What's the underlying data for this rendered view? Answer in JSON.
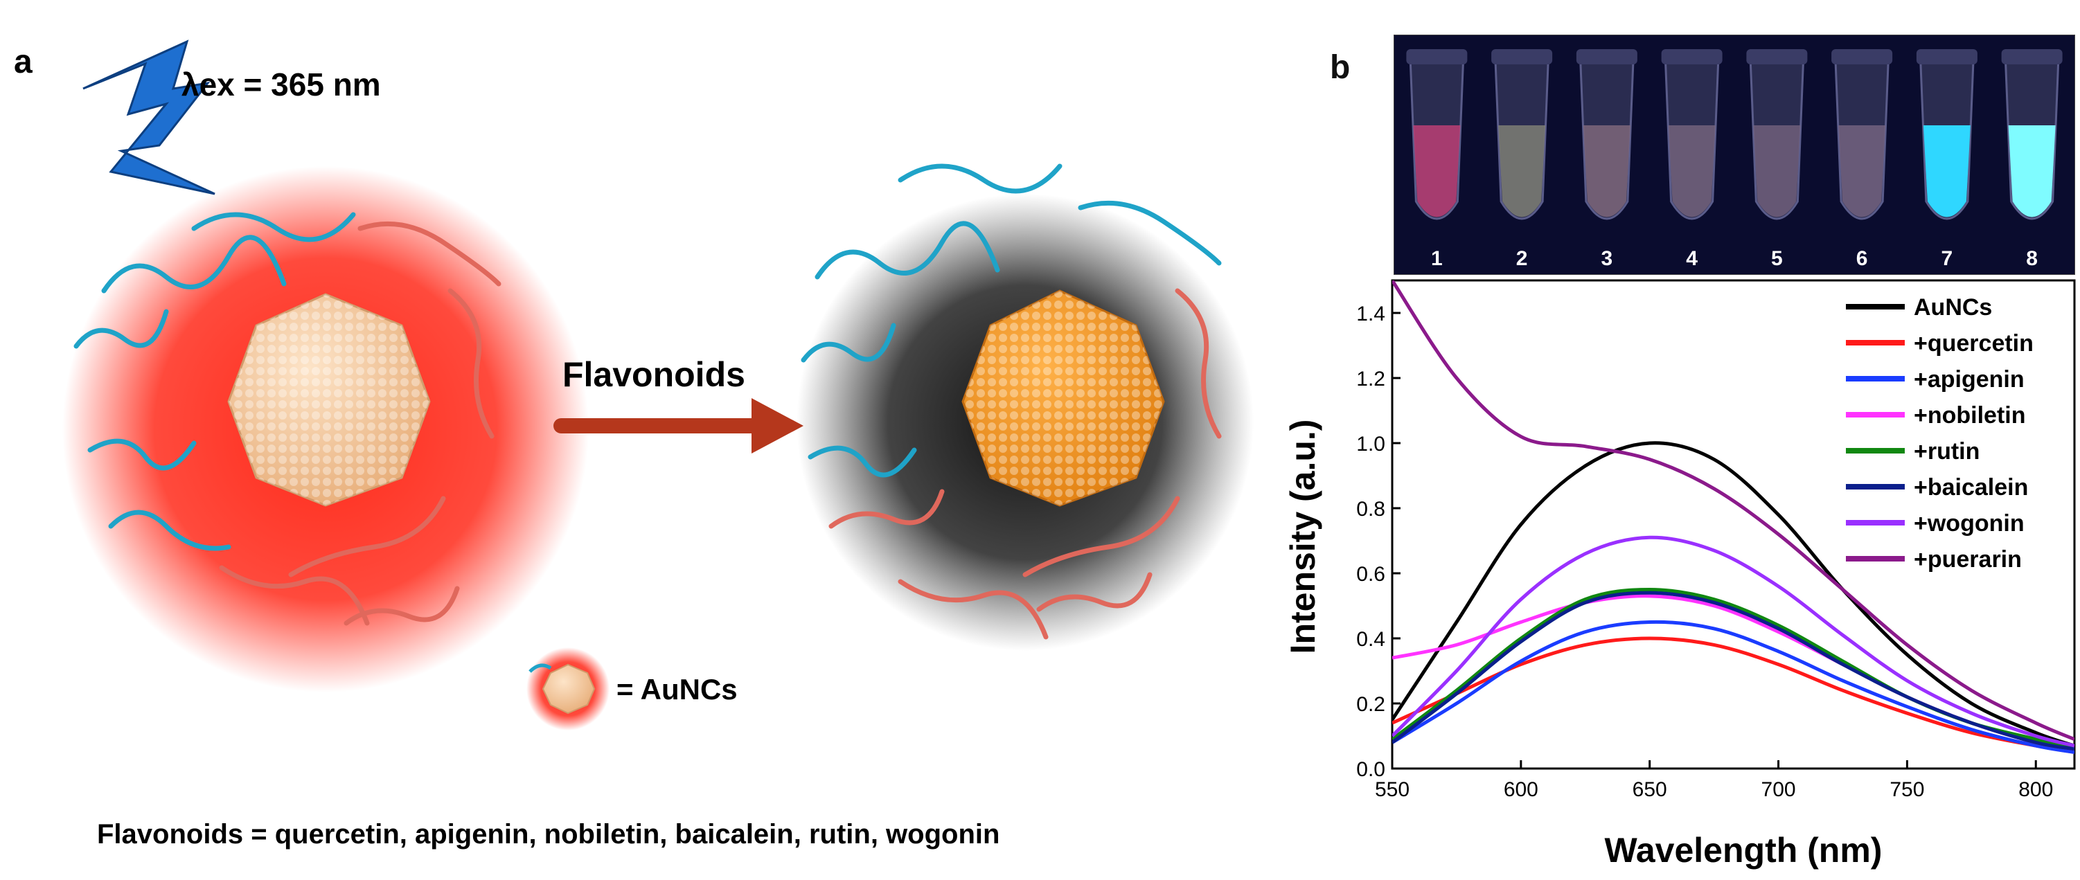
{
  "panel_a": {
    "label": "a",
    "excitation": "λex = 365 nm",
    "arrow_label": "Flavonoids",
    "legend_eq": "= AuNCs",
    "caption": "Flavonoids = quercetin, apigenin, nobiletin, baicalein, rutin, wogonin",
    "colors": {
      "glow": "#ff2a1a",
      "dark_glow": "#1a1a1a",
      "cluster": "#f2c49a",
      "arrow": "#b5371c",
      "protein_blue": "#1fa3c8",
      "protein_red": "#e0685c",
      "bolt": "#1e6fd0"
    }
  },
  "panel_b": {
    "label": "b",
    "tubes": [
      "1",
      "2",
      "3",
      "4",
      "5",
      "6",
      "7",
      "8"
    ],
    "tube_colors": [
      "#d0427a",
      "#8a8a7a",
      "#8a6f80",
      "#7d6a82",
      "#7a6680",
      "#7d6a86",
      "#2fd7ff",
      "#7ffcff"
    ]
  },
  "chart_data": {
    "type": "line",
    "xlabel": "Wavelength (nm)",
    "ylabel": "Intensity (a.u.)",
    "xlim": [
      550,
      815
    ],
    "ylim": [
      0,
      1.5
    ],
    "xticks": [
      550,
      600,
      650,
      700,
      750,
      800
    ],
    "yticks": [
      0.0,
      0.2,
      0.4,
      0.6,
      0.8,
      1.0,
      1.2,
      1.4
    ],
    "tick_labels_x": [
      "550",
      "600",
      "650",
      "700",
      "750",
      "800"
    ],
    "tick_labels_y": [
      "0.0",
      "0.2",
      "0.4",
      "0.6",
      "0.8",
      "1.0",
      "1.2",
      "1.4"
    ],
    "legend_position": "top-right",
    "x": [
      550,
      575,
      600,
      625,
      650,
      675,
      700,
      725,
      750,
      775,
      800,
      815
    ],
    "series": [
      {
        "name": "AuNCs",
        "color": "#000000",
        "values": [
          0.15,
          0.45,
          0.75,
          0.93,
          1.0,
          0.95,
          0.78,
          0.55,
          0.35,
          0.2,
          0.11,
          0.07
        ]
      },
      {
        "name": "+quercetin",
        "color": "#ff1a1a",
        "values": [
          0.14,
          0.23,
          0.32,
          0.38,
          0.4,
          0.38,
          0.32,
          0.24,
          0.17,
          0.11,
          0.07,
          0.05
        ]
      },
      {
        "name": "+apigenin",
        "color": "#1a3cff",
        "values": [
          0.08,
          0.2,
          0.33,
          0.42,
          0.45,
          0.43,
          0.36,
          0.27,
          0.19,
          0.12,
          0.07,
          0.05
        ]
      },
      {
        "name": "+nobiletin",
        "color": "#ff33ff",
        "values": [
          0.34,
          0.38,
          0.45,
          0.51,
          0.53,
          0.5,
          0.42,
          0.32,
          0.22,
          0.14,
          0.08,
          0.06
        ]
      },
      {
        "name": "+rutin",
        "color": "#118811",
        "values": [
          0.09,
          0.24,
          0.4,
          0.52,
          0.55,
          0.52,
          0.44,
          0.33,
          0.22,
          0.14,
          0.09,
          0.06
        ]
      },
      {
        "name": "+baicalein",
        "color": "#0b1f8c",
        "values": [
          0.08,
          0.23,
          0.39,
          0.51,
          0.54,
          0.51,
          0.43,
          0.32,
          0.22,
          0.14,
          0.08,
          0.06
        ]
      },
      {
        "name": "+wogonin",
        "color": "#9a30ff",
        "values": [
          0.1,
          0.3,
          0.52,
          0.66,
          0.71,
          0.67,
          0.56,
          0.41,
          0.27,
          0.17,
          0.1,
          0.07
        ]
      },
      {
        "name": "+puerarin",
        "color": "#8b1a8b",
        "values": [
          1.5,
          1.2,
          1.02,
          0.99,
          0.95,
          0.86,
          0.72,
          0.55,
          0.38,
          0.24,
          0.14,
          0.09
        ]
      }
    ]
  }
}
